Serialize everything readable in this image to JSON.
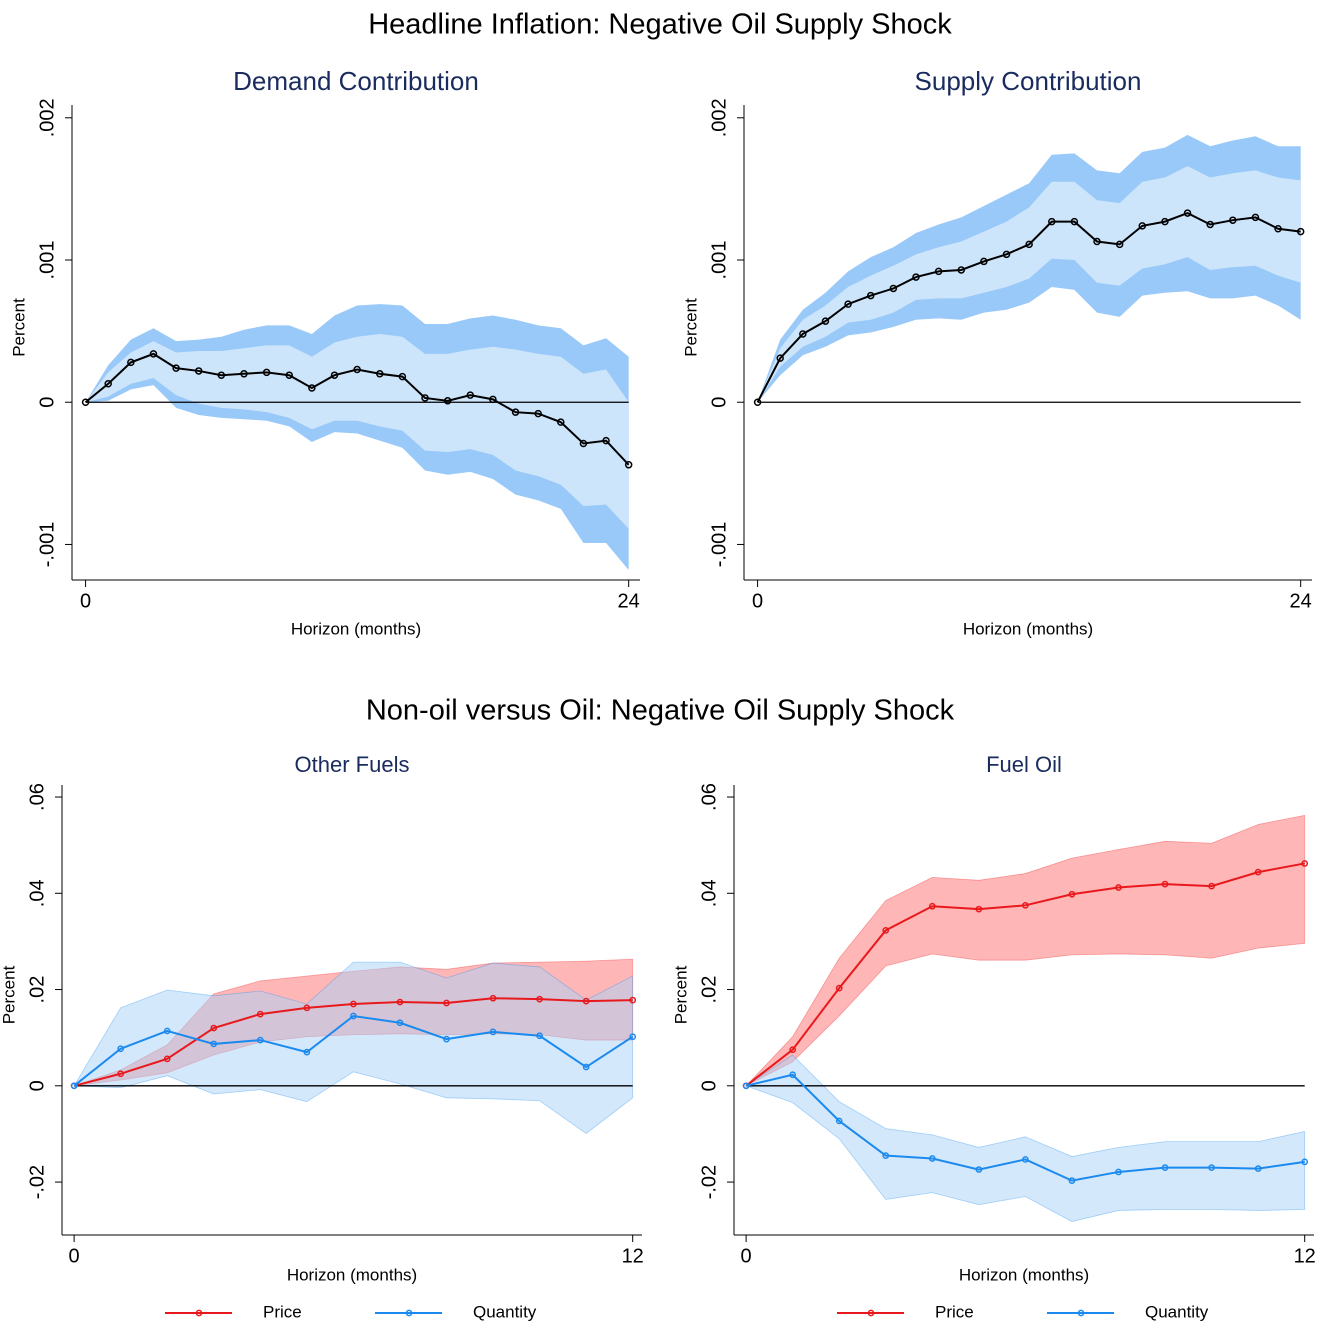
{
  "headings": [
    "Headline Inflation: Negative Oil Supply Shock",
    "Non-oil versus Oil: Negative Oil Supply Shock"
  ],
  "chart_data": [
    {
      "type": "line",
      "title": "Demand Contribution",
      "y_label": "Percent",
      "x_label": "Horizon (months)",
      "x": [
        0,
        1,
        2,
        3,
        4,
        5,
        6,
        7,
        8,
        9,
        10,
        11,
        12,
        13,
        14,
        15,
        16,
        17,
        18,
        19,
        20,
        21,
        22,
        23,
        24
      ],
      "xlim": [
        -0.6,
        24.5
      ],
      "xticks": [
        0,
        24
      ],
      "ylim": [
        -0.00125,
        0.00209
      ],
      "yticks": [
        {
          "value": -0.001,
          "label": "-.001"
        },
        0,
        {
          "value": 0.001,
          "label": ".001"
        },
        {
          "value": 0.002,
          "label": ".002"
        }
      ],
      "hline": 0,
      "series": [
        {
          "color": "#000000",
          "values": [
            0,
            0.00013,
            0.00028,
            0.00034,
            0.00024,
            0.00022,
            0.00019,
            0.0002,
            0.00021,
            0.00019,
            0.0001,
            0.00019,
            0.00023,
            0.0002,
            0.00018,
            3e-05,
            1e-05,
            5e-05,
            2e-05,
            -7e-05,
            -8e-05,
            -0.00014,
            -0.00029,
            -0.00027,
            -0.00044
          ],
          "bands": [
            {
              "color": "#99c9f9",
              "opacity": 1,
              "upper": [
                0,
                0.00026,
                0.00044,
                0.00052,
                0.00043,
                0.00044,
                0.00046,
                0.00051,
                0.00054,
                0.00054,
                0.00048,
                0.00061,
                0.00068,
                0.00069,
                0.00068,
                0.00055,
                0.00055,
                0.00059,
                0.00061,
                0.00058,
                0.00054,
                0.00052,
                0.0004,
                0.00045,
                0.00032
              ],
              "lower": [
                0,
                1e-05,
                9e-05,
                0.00012,
                -4e-05,
                -9e-05,
                -0.00011,
                -0.00012,
                -0.00013,
                -0.00017,
                -0.00028,
                -0.00021,
                -0.00022,
                -0.00027,
                -0.00032,
                -0.00048,
                -0.00051,
                -0.00049,
                -0.00054,
                -0.00065,
                -0.00069,
                -0.00075,
                -0.00099,
                -0.00099,
                -0.00118
              ]
            },
            {
              "color": "#cde5fb",
              "opacity": 1,
              "upper": [
                0,
                0.00021,
                0.00035,
                0.00043,
                0.00035,
                0.00036,
                0.00036,
                0.00038,
                0.0004,
                0.0004,
                0.00032,
                0.00042,
                0.00046,
                0.00048,
                0.00046,
                0.00034,
                0.00034,
                0.00037,
                0.00039,
                0.00037,
                0.00034,
                0.00032,
                0.0002,
                0.00023,
                0
              ],
              "lower": [
                0,
                4e-05,
                0.00013,
                0.00017,
                5e-05,
                -1e-05,
                -4e-05,
                -5e-05,
                -7e-05,
                -0.00011,
                -0.00019,
                -0.00013,
                -0.00013,
                -0.00017,
                -0.0002,
                -0.00034,
                -0.00035,
                -0.00033,
                -0.00037,
                -0.00048,
                -0.00052,
                -0.00058,
                -0.00073,
                -0.00072,
                -0.00089
              ]
            }
          ]
        }
      ]
    },
    {
      "type": "line",
      "title": "Supply Contribution",
      "y_label": "Percent",
      "x_label": "Horizon (months)",
      "x": [
        0,
        1,
        2,
        3,
        4,
        5,
        6,
        7,
        8,
        9,
        10,
        11,
        12,
        13,
        14,
        15,
        16,
        17,
        18,
        19,
        20,
        21,
        22,
        23,
        24
      ],
      "xlim": [
        -0.6,
        24.5
      ],
      "xticks": [
        0,
        24
      ],
      "ylim": [
        -0.00125,
        0.00209
      ],
      "yticks": [
        {
          "value": -0.001,
          "label": "-.001"
        },
        0,
        {
          "value": 0.001,
          "label": ".001"
        },
        {
          "value": 0.002,
          "label": ".002"
        }
      ],
      "hline": 0,
      "series": [
        {
          "color": "#000000",
          "values": [
            0,
            0.00031,
            0.00048,
            0.00057,
            0.00069,
            0.00075,
            0.0008,
            0.00088,
            0.00092,
            0.00093,
            0.00099,
            0.00104,
            0.00111,
            0.00127,
            0.00127,
            0.00113,
            0.00111,
            0.00124,
            0.00127,
            0.00133,
            0.00125,
            0.00128,
            0.0013,
            0.00122,
            0.0012
          ],
          "bands": [
            {
              "color": "#99c9f9",
              "opacity": 1,
              "upper": [
                0,
                0.00044,
                0.00065,
                0.00077,
                0.00092,
                0.00102,
                0.00109,
                0.00119,
                0.00125,
                0.0013,
                0.00138,
                0.00146,
                0.00154,
                0.00174,
                0.00175,
                0.00163,
                0.00161,
                0.00176,
                0.00179,
                0.00188,
                0.0018,
                0.00184,
                0.00187,
                0.0018,
                0.0018
              ],
              "lower": [
                0,
                0.00019,
                0.00033,
                0.00039,
                0.00047,
                0.00049,
                0.00053,
                0.00058,
                0.00059,
                0.00058,
                0.00063,
                0.00065,
                0.0007,
                0.00081,
                0.00079,
                0.00063,
                0.0006,
                0.00075,
                0.00077,
                0.00078,
                0.00073,
                0.00073,
                0.00075,
                0.00068,
                0.00058
              ]
            },
            {
              "color": "#cde5fb",
              "opacity": 1,
              "upper": [
                0,
                0.00038,
                0.00058,
                0.00068,
                0.00081,
                0.00089,
                0.00096,
                0.00104,
                0.00109,
                0.00113,
                0.0012,
                0.00127,
                0.00137,
                0.00155,
                0.00155,
                0.00142,
                0.0014,
                0.00155,
                0.00158,
                0.00166,
                0.00158,
                0.00161,
                0.00163,
                0.00158,
                0.00156
              ],
              "lower": [
                0,
                0.00025,
                0.00039,
                0.00046,
                0.00056,
                0.00058,
                0.00063,
                0.00072,
                0.00073,
                0.00073,
                0.00077,
                0.00081,
                0.00087,
                0.00101,
                0.001,
                0.00084,
                0.00082,
                0.00094,
                0.00097,
                0.00102,
                0.00093,
                0.00095,
                0.00096,
                0.00089,
                0.00084
              ]
            }
          ]
        }
      ]
    },
    {
      "type": "line",
      "title": "Other Fuels",
      "y_label": "Percent",
      "x_label": "Horizon (months)",
      "x": [
        0,
        1,
        2,
        3,
        4,
        5,
        6,
        7,
        8,
        9,
        10,
        11,
        12
      ],
      "xlim": [
        -0.26,
        12.2
      ],
      "xticks": [
        0,
        12
      ],
      "ylim": [
        -0.031,
        0.0625
      ],
      "yticks": [
        {
          "value": -0.02,
          "label": "-.02"
        },
        0,
        {
          "value": 0.02,
          "label": ".02"
        },
        {
          "value": 0.04,
          "label": ".04"
        },
        {
          "value": 0.06,
          "label": ".06"
        }
      ],
      "hline": 0,
      "legend": "bottom",
      "series": [
        {
          "name": "Price",
          "color": "#e8191c",
          "values": [
            0,
            0.0025,
            0.0056,
            0.012,
            0.0149,
            0.0162,
            0.017,
            0.0174,
            0.0172,
            0.0182,
            0.018,
            0.0176,
            0.0178
          ],
          "bands": [
            {
              "color": "#ff7a7a",
              "opacity": 0.55,
              "upper": [
                0,
                0.0033,
                0.0085,
                0.0191,
                0.0218,
                0.0228,
                0.0238,
                0.0247,
                0.0242,
                0.0255,
                0.0257,
                0.0259,
                0.0263
              ],
              "lower": [
                0,
                0.0012,
                0.0027,
                0.0064,
                0.0091,
                0.0102,
                0.0106,
                0.0108,
                0.0106,
                0.0108,
                0.0106,
                0.0095,
                0.0095
              ]
            }
          ]
        },
        {
          "name": "Quantity",
          "color": "#1b8aef",
          "values": [
            0,
            0.0077,
            0.0114,
            0.0087,
            0.0095,
            0.007,
            0.0145,
            0.0131,
            0.0097,
            0.0112,
            0.0104,
            0.0039,
            0.0102
          ],
          "bands": [
            {
              "color": "#a9d1f7",
              "opacity": 0.5,
              "upper": [
                0,
                0.0162,
                0.0199,
                0.0187,
                0.0197,
                0.017,
                0.0257,
                0.0257,
                0.0224,
                0.0255,
                0.0247,
                0.0178,
                0.0228
              ],
              "lower": [
                0,
                -0.0004,
                0.0021,
                -0.0017,
                -0.0008,
                -0.0033,
                0.0029,
                0.0004,
                -0.0025,
                -0.0027,
                -0.0031,
                -0.0099,
                -0.0025
              ]
            }
          ]
        }
      ]
    },
    {
      "type": "line",
      "title": "Fuel Oil",
      "y_label": "Percent",
      "x_label": "Horizon (months)",
      "x": [
        0,
        1,
        2,
        3,
        4,
        5,
        6,
        7,
        8,
        9,
        10,
        11,
        12
      ],
      "xlim": [
        -0.26,
        12.2
      ],
      "xticks": [
        0,
        12
      ],
      "ylim": [
        -0.031,
        0.0625
      ],
      "yticks": [
        {
          "value": -0.02,
          "label": "-.02"
        },
        0,
        {
          "value": 0.02,
          "label": ".02"
        },
        {
          "value": 0.04,
          "label": ".04"
        },
        {
          "value": 0.06,
          "label": ".06"
        }
      ],
      "hline": 0,
      "legend": "bottom",
      "series": [
        {
          "name": "Price",
          "color": "#e8191c",
          "values": [
            0,
            0.0075,
            0.0203,
            0.0323,
            0.0373,
            0.0367,
            0.0375,
            0.0398,
            0.0412,
            0.0419,
            0.0415,
            0.0444,
            0.0462
          ],
          "bands": [
            {
              "color": "#ff7a7a",
              "opacity": 0.55,
              "upper": [
                0,
                0.0102,
                0.0265,
                0.0385,
                0.0433,
                0.0427,
                0.0441,
                0.0473,
                0.0491,
                0.0508,
                0.0504,
                0.0543,
                0.0562
              ],
              "lower": [
                0,
                0.005,
                0.0145,
                0.0249,
                0.0274,
                0.0261,
                0.0261,
                0.0272,
                0.0274,
                0.0272,
                0.0265,
                0.0286,
                0.0296
              ]
            }
          ]
        },
        {
          "name": "Quantity",
          "color": "#1b8aef",
          "values": [
            0,
            0.0023,
            -0.0073,
            -0.0145,
            -0.0151,
            -0.0174,
            -0.0153,
            -0.0197,
            -0.0179,
            -0.017,
            -0.017,
            -0.0172,
            -0.0158
          ],
          "bands": [
            {
              "color": "#a9d1f7",
              "opacity": 0.5,
              "upper": [
                0,
                0.0064,
                -0.0033,
                -0.0089,
                -0.0102,
                -0.0128,
                -0.0106,
                -0.0147,
                -0.0128,
                -0.0116,
                -0.0116,
                -0.0116,
                -0.0095
              ],
              "lower": [
                0,
                -0.0035,
                -0.011,
                -0.0236,
                -0.0222,
                -0.0247,
                -0.023,
                -0.0282,
                -0.0259,
                -0.0257,
                -0.0257,
                -0.0259,
                -0.0257
              ]
            }
          ]
        }
      ]
    }
  ]
}
